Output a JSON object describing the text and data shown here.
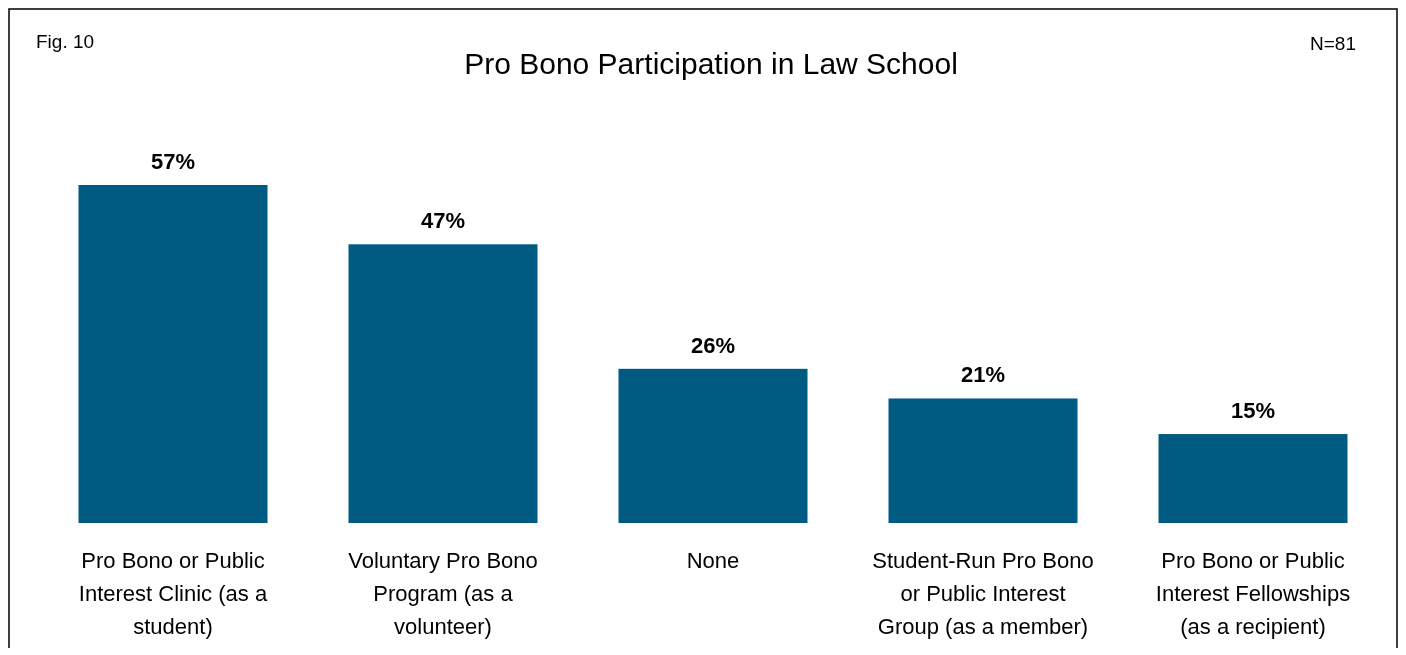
{
  "chart_data": {
    "type": "bar",
    "title": "Pro Bono Participation in Law School",
    "annotations": [
      "Fig. 10",
      "N=81"
    ],
    "categories": [
      "Pro Bono or Public Interest Clinic (as a student)",
      "Voluntary Pro Bono Program (as a volunteer)",
      "None",
      "Student-Run Pro Bono or Public Interest Group (as a member)",
      "Pro Bono or Public Interest Fellowships (as a recipient)"
    ],
    "values": [
      57,
      47,
      26,
      21,
      15
    ],
    "color": "#005b82",
    "value_labels": [
      "57%",
      "47%",
      "26%",
      "21%",
      "15%"
    ]
  }
}
